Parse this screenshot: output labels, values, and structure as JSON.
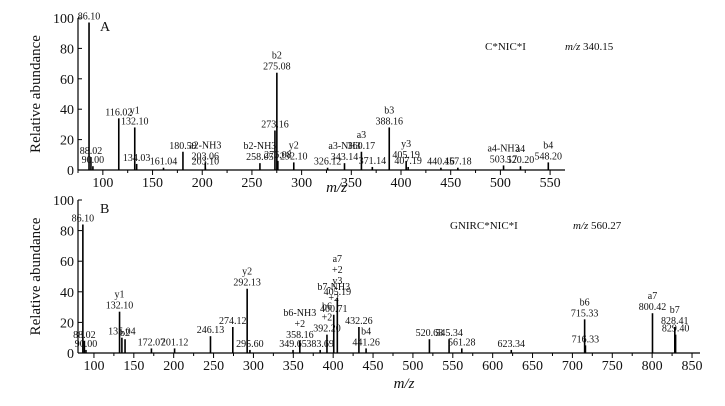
{
  "chart_data": [
    {
      "type": "bar",
      "panel_label": "A",
      "sequence": "C*NIC*I",
      "mz_label": "m/z",
      "mz_value": "340.15",
      "xlabel": "m/z",
      "ylabel": "Relative  abundance",
      "xlim": [
        75,
        565
      ],
      "ylim": [
        0,
        100
      ],
      "xticks": [
        100,
        150,
        200,
        250,
        300,
        350,
        400,
        450,
        500,
        550
      ],
      "yticks": [
        0,
        20,
        40,
        60,
        80,
        100
      ],
      "peaks": [
        {
          "x": 86.1,
          "y": 97,
          "labels": [
            "86.10"
          ]
        },
        {
          "x": 88.02,
          "y": 8.5,
          "labels": [
            "88.02"
          ]
        },
        {
          "x": 90.0,
          "y": 2.5,
          "labels": [
            "90.00"
          ]
        },
        {
          "x": 116.02,
          "y": 34,
          "labels": [
            "116.02"
          ]
        },
        {
          "x": 132.1,
          "y": 28,
          "labels": [
            "y1",
            "132.10"
          ]
        },
        {
          "x": 134.03,
          "y": 4,
          "labels": [
            "134.03"
          ]
        },
        {
          "x": 161.04,
          "y": 1.5,
          "labels": [
            "161.04"
          ]
        },
        {
          "x": 180.59,
          "y": 12,
          "labels": [
            "180.59"
          ]
        },
        {
          "x": 203.1,
          "y": 1.5,
          "labels": [
            "203.10"
          ]
        },
        {
          "x": 203.06,
          "y": 5,
          "labels": [
            "a2-NH3",
            "203.06"
          ]
        },
        {
          "x": 258.05,
          "y": 4.5,
          "labels": [
            "b2-NH3",
            "258.05"
          ]
        },
        {
          "x": 273.16,
          "y": 26,
          "labels": [
            "273.16"
          ]
        },
        {
          "x": 275.08,
          "y": 64,
          "labels": [
            "b2",
            "275.08"
          ]
        },
        {
          "x": 276.08,
          "y": 6,
          "labels": [
            "276.08"
          ]
        },
        {
          "x": 292.1,
          "y": 5,
          "labels": [
            "y2",
            "292.10"
          ]
        },
        {
          "x": 326.12,
          "y": 1.5,
          "labels": [
            "326.12"
          ]
        },
        {
          "x": 343.14,
          "y": 4.5,
          "labels": [
            "a3-NH3",
            "343.14"
          ]
        },
        {
          "x": 360.17,
          "y": 12,
          "labels": [
            "a3",
            "360.17"
          ]
        },
        {
          "x": 371.14,
          "y": 2,
          "labels": [
            "371.14"
          ]
        },
        {
          "x": 388.16,
          "y": 28,
          "labels": [
            "b3",
            "388.16"
          ]
        },
        {
          "x": 405.19,
          "y": 6,
          "labels": [
            "y3",
            "405.19"
          ]
        },
        {
          "x": 407.19,
          "y": 2,
          "labels": [
            "407.19"
          ]
        },
        {
          "x": 440.16,
          "y": 1.5,
          "labels": [
            "440.16"
          ]
        },
        {
          "x": 457.18,
          "y": 1.5,
          "labels": [
            "457.18"
          ]
        },
        {
          "x": 503.17,
          "y": 3,
          "labels": [
            "a4-NH3",
            "503.17"
          ]
        },
        {
          "x": 520.2,
          "y": 2.5,
          "labels": [
            "a4",
            "520.20"
          ]
        },
        {
          "x": 548.2,
          "y": 5,
          "labels": [
            "b4",
            "548.20"
          ]
        }
      ]
    },
    {
      "type": "bar",
      "panel_label": "B",
      "sequence": "GNIRC*NIC*I",
      "mz_label": "m/z",
      "mz_value": "560.27",
      "xlabel": "m/z",
      "ylabel": "Relative  abundance",
      "xlim": [
        80,
        860
      ],
      "ylim": [
        0,
        100
      ],
      "xticks": [
        100,
        150,
        200,
        250,
        300,
        350,
        400,
        450,
        500,
        550,
        600,
        650,
        700,
        750,
        800,
        850
      ],
      "yticks": [
        0,
        20,
        40,
        60,
        80,
        100
      ],
      "peaks": [
        {
          "x": 86.1,
          "y": 84,
          "labels": [
            "86.10"
          ]
        },
        {
          "x": 88.02,
          "y": 8,
          "labels": [
            "88.02"
          ]
        },
        {
          "x": 90.0,
          "y": 2,
          "labels": [
            "90.00"
          ]
        },
        {
          "x": 132.1,
          "y": 27,
          "labels": [
            "y1",
            "132.10"
          ]
        },
        {
          "x": 135.04,
          "y": 10,
          "labels": [
            "135.04"
          ]
        },
        {
          "x": 139.0,
          "y": 9,
          "labels": [
            "b2"
          ]
        },
        {
          "x": 172.07,
          "y": 3,
          "labels": [
            "172.07"
          ]
        },
        {
          "x": 201.12,
          "y": 3,
          "labels": [
            "201.12"
          ]
        },
        {
          "x": 246.13,
          "y": 11,
          "labels": [
            "246.13"
          ]
        },
        {
          "x": 274.12,
          "y": 17,
          "labels": [
            "274.12"
          ]
        },
        {
          "x": 292.13,
          "y": 42,
          "labels": [
            "y2",
            "292.13"
          ]
        },
        {
          "x": 295.6,
          "y": 2,
          "labels": [
            "295.60"
          ]
        },
        {
          "x": 349.65,
          "y": 2,
          "labels": [
            "349.65"
          ]
        },
        {
          "x": 358.16,
          "y": 8,
          "labels": [
            "b6-NH3",
            "+2",
            "358.16"
          ]
        },
        {
          "x": 383.69,
          "y": 2,
          "labels": [
            "383.69"
          ]
        },
        {
          "x": 392.2,
          "y": 12,
          "labels": [
            "b6",
            "+2",
            "392.20"
          ]
        },
        {
          "x": 400.71,
          "y": 25,
          "labels": [
            "b7-NH3",
            "+2",
            "400.71"
          ]
        },
        {
          "x": 405.19,
          "y": 36,
          "labels": [
            "a7",
            "+2",
            "y3",
            "405.19"
          ]
        },
        {
          "x": 432.26,
          "y": 17,
          "labels": [
            "432.26"
          ]
        },
        {
          "x": 441.26,
          "y": 3,
          "labels": [
            "b4",
            "441.26"
          ]
        },
        {
          "x": 520.68,
          "y": 9,
          "labels": [
            "520.68"
          ]
        },
        {
          "x": 545.34,
          "y": 9,
          "labels": [
            "545.34"
          ]
        },
        {
          "x": 561.28,
          "y": 3,
          "labels": [
            "561.28"
          ]
        },
        {
          "x": 623.34,
          "y": 2,
          "labels": [
            "623.34"
          ]
        },
        {
          "x": 715.33,
          "y": 22,
          "labels": [
            "b6",
            "715.33"
          ]
        },
        {
          "x": 716.33,
          "y": 5,
          "labels": [
            "716.33"
          ]
        },
        {
          "x": 800.42,
          "y": 26,
          "labels": [
            "a7",
            "800.42"
          ]
        },
        {
          "x": 828.41,
          "y": 17,
          "labels": [
            "b7",
            "828.41"
          ]
        },
        {
          "x": 829.4,
          "y": 12,
          "labels": [
            "829.40"
          ]
        }
      ]
    }
  ]
}
